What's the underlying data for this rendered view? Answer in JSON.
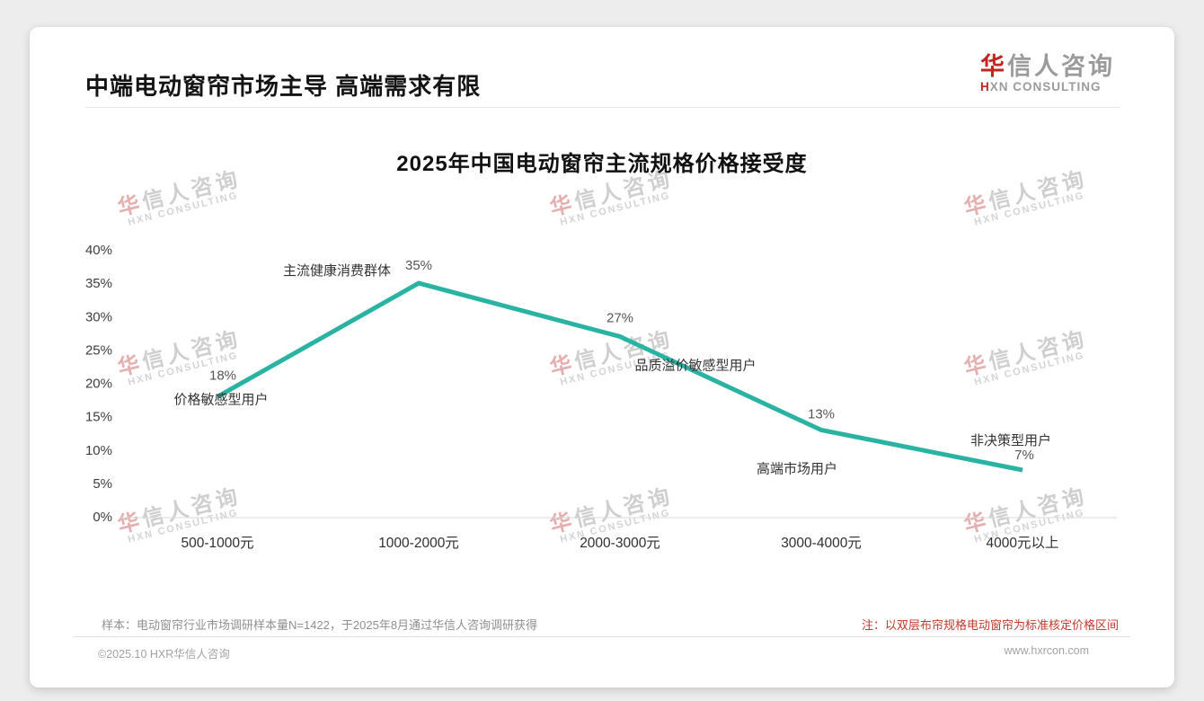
{
  "header": {
    "title": "中端电动窗帘市场主导 高端需求有限",
    "logo": {
      "zh_red": "华",
      "zh_rest": "信人咨询",
      "en_red": "H",
      "en_rest": "XN CONSULTING"
    }
  },
  "watermark": {
    "zh_red": "华",
    "zh_rest": "信人咨询",
    "en": "HXN CONSULTING"
  },
  "chart_data": {
    "type": "line",
    "title": "2025年中国电动窗帘主流规格价格接受度",
    "categories": [
      "500-1000元",
      "1000-2000元",
      "2000-3000元",
      "3000-4000元",
      "4000元以上"
    ],
    "values": [
      18,
      35,
      27,
      13,
      7
    ],
    "value_labels": [
      "18%",
      "35%",
      "27%",
      "13%",
      "7%"
    ],
    "point_annotations": [
      "价格敏感型用户",
      "主流健康消费群体",
      "品质溢价敏感型用户",
      "高端市场用户",
      "非决策型用户"
    ],
    "xlabel": "",
    "ylabel": "",
    "ylim": [
      0,
      40
    ],
    "ytick_step": 5,
    "ytick_labels": [
      "0%",
      "5%",
      "10%",
      "15%",
      "20%",
      "25%",
      "30%",
      "35%",
      "40%"
    ],
    "grid": false,
    "legend": null,
    "line_color": "#2ab3a3",
    "baseline_color": "#d8d8d8"
  },
  "footer": {
    "sample_note": "样本：电动窗帘行业市场调研样本量N=1422，于2025年8月通过华信人咨询调研获得",
    "price_note": "注：以双层布帘规格电动窗帘为标准核定价格区间",
    "copyright": "©2025.10 HXR华信人咨询",
    "website": "www.hxrcon.com"
  }
}
